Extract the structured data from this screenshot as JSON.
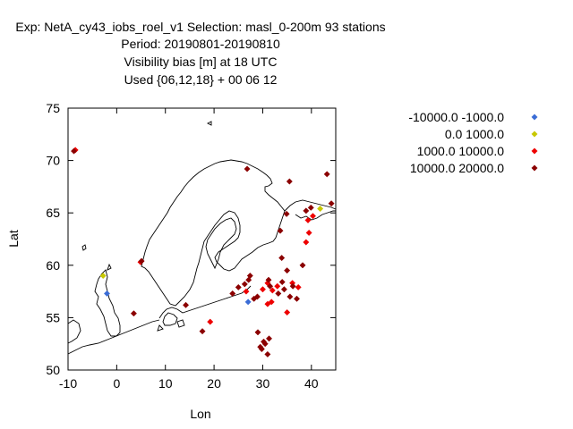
{
  "chart_data": {
    "type": "scatter",
    "title_lines": [
      "Exp: NetA_cy43_iobs_roel_v1   Selection: masl_0-200m     93 stations",
      "Period: 20190801-20190810",
      "Visibility bias [m] at  18 UTC",
      "Used {06,12,18} + 00 06 12"
    ],
    "xlabel": "Lon",
    "ylabel": "Lat",
    "xlim": [
      -10,
      45
    ],
    "ylim": [
      50,
      75
    ],
    "xticks": [
      "-10",
      "0",
      "10",
      "20",
      "30",
      "40"
    ],
    "yticks": [
      "50",
      "55",
      "60",
      "65",
      "70",
      "75"
    ],
    "legend_position": "right",
    "series": [
      {
        "name": "-10000.0 -1000.0",
        "color": "#3a6cd6",
        "points": [
          [
            -2.0,
            57.3
          ],
          [
            27.0,
            56.5
          ]
        ]
      },
      {
        "name": "0.0 1000.0",
        "color": "#c8c800",
        "points": [
          [
            -2.8,
            59.0
          ],
          [
            41.8,
            65.4
          ]
        ]
      },
      {
        "name": "1000.0 10000.0",
        "color": "#ee0000",
        "points": [
          [
            -8.5,
            71.0
          ],
          [
            4.9,
            60.3
          ],
          [
            19.2,
            54.6
          ],
          [
            26.6,
            57.5
          ],
          [
            30.0,
            57.7
          ],
          [
            31.0,
            56.3
          ],
          [
            31.8,
            56.5
          ],
          [
            31.0,
            58.3
          ],
          [
            32.0,
            57.6
          ],
          [
            33.0,
            58.0
          ],
          [
            35.0,
            55.5
          ],
          [
            36.1,
            58.3
          ],
          [
            37.3,
            57.9
          ],
          [
            38.9,
            62.2
          ],
          [
            39.3,
            64.3
          ],
          [
            40.3,
            64.7
          ],
          [
            39.5,
            63.1
          ]
        ]
      },
      {
        "name": "10000.0 20000.0",
        "color": "#8b0000",
        "points": [
          [
            -8.8,
            70.9
          ],
          [
            3.5,
            55.4
          ],
          [
            5.1,
            60.4
          ],
          [
            14.2,
            56.2
          ],
          [
            17.6,
            53.7
          ],
          [
            23.8,
            57.3
          ],
          [
            25.0,
            57.9
          ],
          [
            26.3,
            58.2
          ],
          [
            27.1,
            58.6
          ],
          [
            27.4,
            59.0
          ],
          [
            26.8,
            69.2
          ],
          [
            28.2,
            56.8
          ],
          [
            28.9,
            57.0
          ],
          [
            29.0,
            53.6
          ],
          [
            29.5,
            52.2
          ],
          [
            30.2,
            52.7
          ],
          [
            29.8,
            52.0
          ],
          [
            30.5,
            52.5
          ],
          [
            31.0,
            51.5
          ],
          [
            31.3,
            53.0
          ],
          [
            31.2,
            58.6
          ],
          [
            31.5,
            58.0
          ],
          [
            33.2,
            57.3
          ],
          [
            33.6,
            63.3
          ],
          [
            33.9,
            60.7
          ],
          [
            34.0,
            58.4
          ],
          [
            34.4,
            57.7
          ],
          [
            34.9,
            64.9
          ],
          [
            35.0,
            59.5
          ],
          [
            35.5,
            68.0
          ],
          [
            35.6,
            57.0
          ],
          [
            36.2,
            58.0
          ],
          [
            37.0,
            56.8
          ],
          [
            38.2,
            60.0
          ],
          [
            38.9,
            65.2
          ],
          [
            39.9,
            65.5
          ],
          [
            43.2,
            68.7
          ],
          [
            44.1,
            65.9
          ]
        ]
      }
    ]
  }
}
